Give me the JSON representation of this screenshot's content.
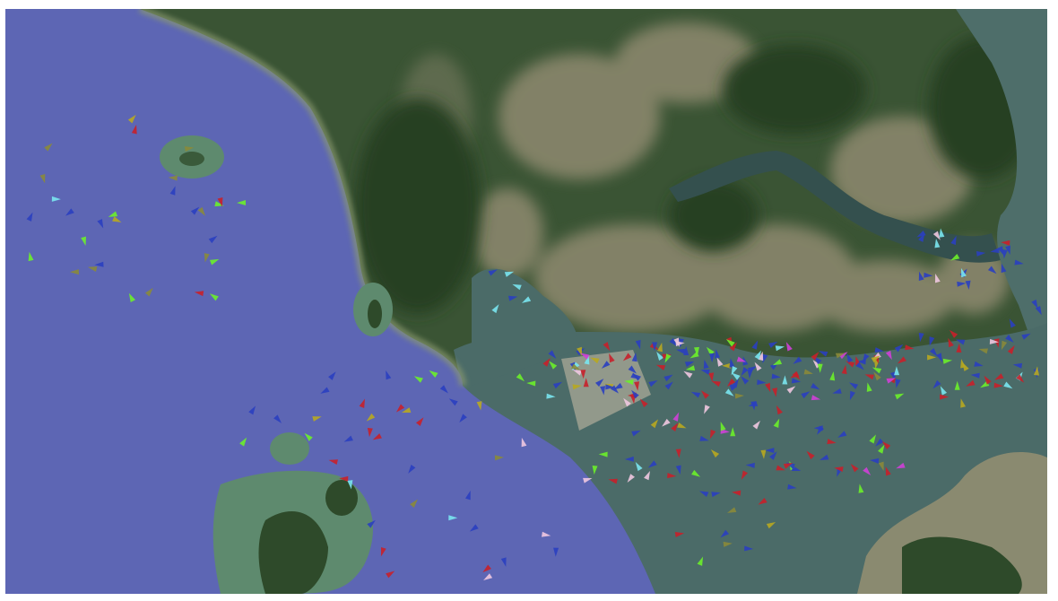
{
  "map": {
    "view": "satellite",
    "colors": {
      "open_sea": "#5d66b4",
      "coastal_water": "#4b6b68",
      "forest": "#2f4a2c",
      "urban": "#8f8a70",
      "shallows": "#5e8a6e"
    },
    "vessel_colors": {
      "blue": "#2a3fc0",
      "red": "#c8202a",
      "green": "#6cf02a",
      "cyan": "#7ae6f0",
      "pink": "#f0c8e0",
      "magenta": "#d040d8",
      "yellow": "#b8a820",
      "olive": "#8a8a3a"
    }
  }
}
